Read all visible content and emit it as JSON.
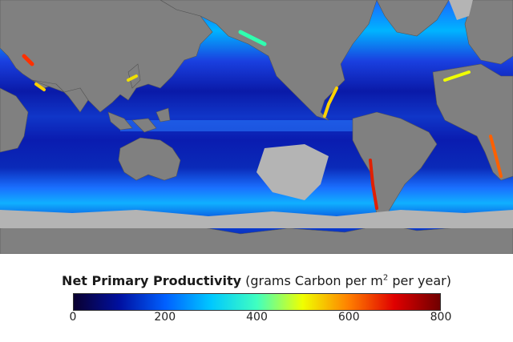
{
  "legend": {
    "title_bold": "Net Primary Productivity",
    "title_rest_pre": "(grams Carbon per m",
    "title_sup": "2",
    "title_rest_post": " per year)",
    "ticks": [
      "0",
      "200",
      "400",
      "600",
      "800"
    ],
    "range": [
      0,
      800
    ],
    "colormap": [
      "#0a0030",
      "#0010a0",
      "#0060ff",
      "#00c8ff",
      "#40ffc0",
      "#f0ff00",
      "#ff8000",
      "#e00000",
      "#700000"
    ]
  },
  "map": {
    "land_color": "#808080",
    "no_data_color": "#b4b4b4"
  }
}
